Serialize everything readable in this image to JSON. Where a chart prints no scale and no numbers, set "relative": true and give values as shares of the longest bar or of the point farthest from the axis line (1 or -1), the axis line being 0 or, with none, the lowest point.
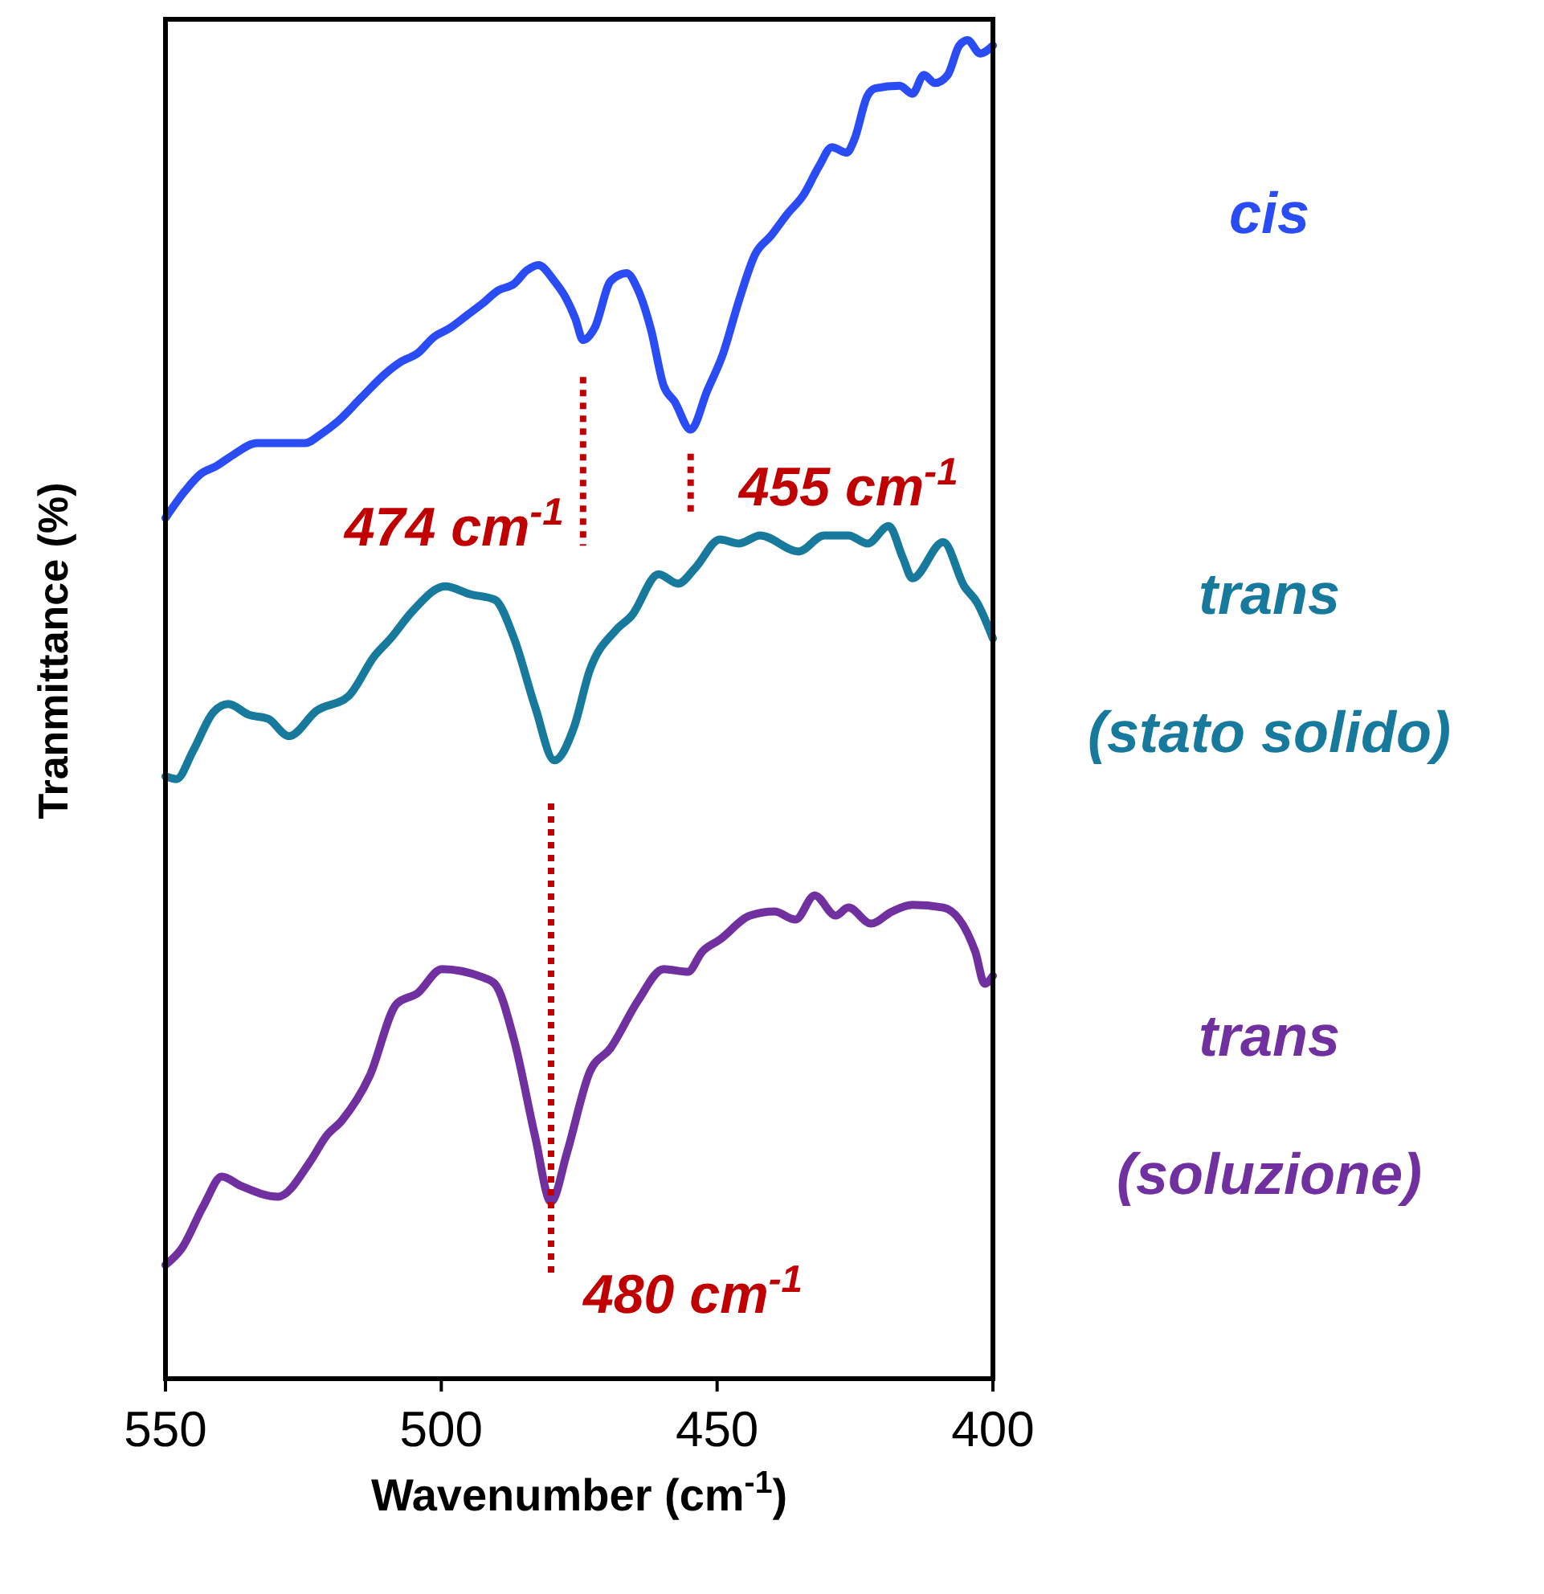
{
  "chart_data": {
    "type": "line",
    "relative": true,
    "xlabel": "Wavenumber (cm$^{-1}$)",
    "ylabel": "Tranmittance (%)",
    "xlim": [
      550,
      400
    ],
    "xticks": [
      550,
      500,
      450,
      400
    ],
    "grid": false,
    "legend": false,
    "marker": "none",
    "line_style": "solid",
    "series": [
      {
        "name": "cis",
        "color": "#2a4cf5",
        "x": [
          550,
          546.5,
          543.6,
          540.7,
          537.8,
          533.4,
          529,
          524.7,
          521.7,
          518.8,
          514.5,
          510.1,
          507.2,
          504.3,
          501.4,
          498.4,
          495.5,
          492.6,
          489.7,
          486.8,
          484.5,
          482.4,
          479.5,
          477.5,
          475.7,
          474.3,
          472.2,
          469.3,
          466.4,
          464.4,
          462,
          459.7,
          457.7,
          454.8,
          451.8,
          448.9,
          446,
          443.1,
          440.2,
          437.3,
          434.4,
          431.5,
          429.2,
          426.5,
          425.1,
          422.8,
          421.3,
          416.9,
          414.6,
          412.5,
          410.5,
          408.2,
          406.1,
          404.6,
          402.3,
          400
        ],
        "values": [
          0.643,
          0.663,
          0.676,
          0.682,
          0.69,
          0.699,
          0.699,
          0.699,
          0.706,
          0.715,
          0.733,
          0.751,
          0.76,
          0.766,
          0.778,
          0.785,
          0.794,
          0.803,
          0.813,
          0.818,
          0.828,
          0.832,
          0.82,
          0.808,
          0.792,
          0.776,
          0.785,
          0.82,
          0.826,
          0.814,
          0.784,
          0.742,
          0.73,
          0.709,
          0.738,
          0.766,
          0.806,
          0.84,
          0.854,
          0.87,
          0.884,
          0.906,
          0.92,
          0.916,
          0.926,
          0.958,
          0.964,
          0.966,
          0.96,
          0.974,
          0.968,
          0.974,
          0.996,
          1,
          0.99,
          0.996
        ]
      },
      {
        "name": "trans (stato solido)",
        "color": "#177a9c",
        "x": [
          550,
          548,
          545,
          541.3,
          538.6,
          534.9,
          531.4,
          527.6,
          522.6,
          516.8,
          512.1,
          509.2,
          505.1,
          499.3,
          494.7,
          490.3,
          486.8,
          483,
          479.5,
          476,
          473.1,
          468.4,
          465.5,
          460.6,
          457.1,
          453.9,
          449.5,
          446,
          442.2,
          435.2,
          430.6,
          426.2,
          422.7,
          418.9,
          416.3,
          414.6,
          409,
          405.2,
          402.9,
          400
        ],
        "values": [
          0.45,
          0.448,
          0.469,
          0.498,
          0.504,
          0.496,
          0.493,
          0.48,
          0.499,
          0.51,
          0.54,
          0.553,
          0.574,
          0.592,
          0.586,
          0.582,
          0.553,
          0.502,
          0.462,
          0.486,
          0.529,
          0.559,
          0.57,
          0.601,
          0.594,
          0.606,
          0.627,
          0.624,
          0.63,
          0.618,
          0.63,
          0.63,
          0.624,
          0.637,
          0.613,
          0.598,
          0.625,
          0.592,
          0.58,
          0.553
        ]
      },
      {
        "name": "trans (soluzione)",
        "color": "#7030a0",
        "x": [
          550,
          547.1,
          543,
          539.8,
          536.3,
          529.6,
          523.8,
          520.9,
          518,
          513,
          508.1,
          504.3,
          499.9,
          492.6,
          490.3,
          486.8,
          483,
          480.1,
          477.2,
          473.1,
          469.3,
          464.4,
          459.7,
          455.3,
          452.7,
          449.5,
          444,
          439.6,
          435.8,
          432.3,
          428.5,
          426.2,
          422.1,
          418.3,
          414.6,
          409,
          403.2,
          401.5,
          400
        ],
        "values": [
          0.085,
          0.097,
          0.13,
          0.151,
          0.144,
          0.136,
          0.162,
          0.181,
          0.193,
          0.226,
          0.28,
          0.288,
          0.306,
          0.3,
          0.295,
          0.253,
          0.181,
          0.132,
          0.169,
          0.229,
          0.247,
          0.282,
          0.306,
          0.304,
          0.319,
          0.328,
          0.346,
          0.349,
          0.343,
          0.361,
          0.346,
          0.352,
          0.34,
          0.349,
          0.354,
          0.352,
          0.319,
          0.295,
          0.301
        ]
      }
    ],
    "annotations": [
      {
        "text": "474 cm$^{-1}$",
        "x": 474.3,
        "y": 0.776
      },
      {
        "text": "455 cm$^{-1}$",
        "x": 454.8,
        "y": 0.709
      },
      {
        "text": "480 cm$^{-1}$",
        "x": 480.1,
        "y": 0.132
      }
    ]
  }
}
